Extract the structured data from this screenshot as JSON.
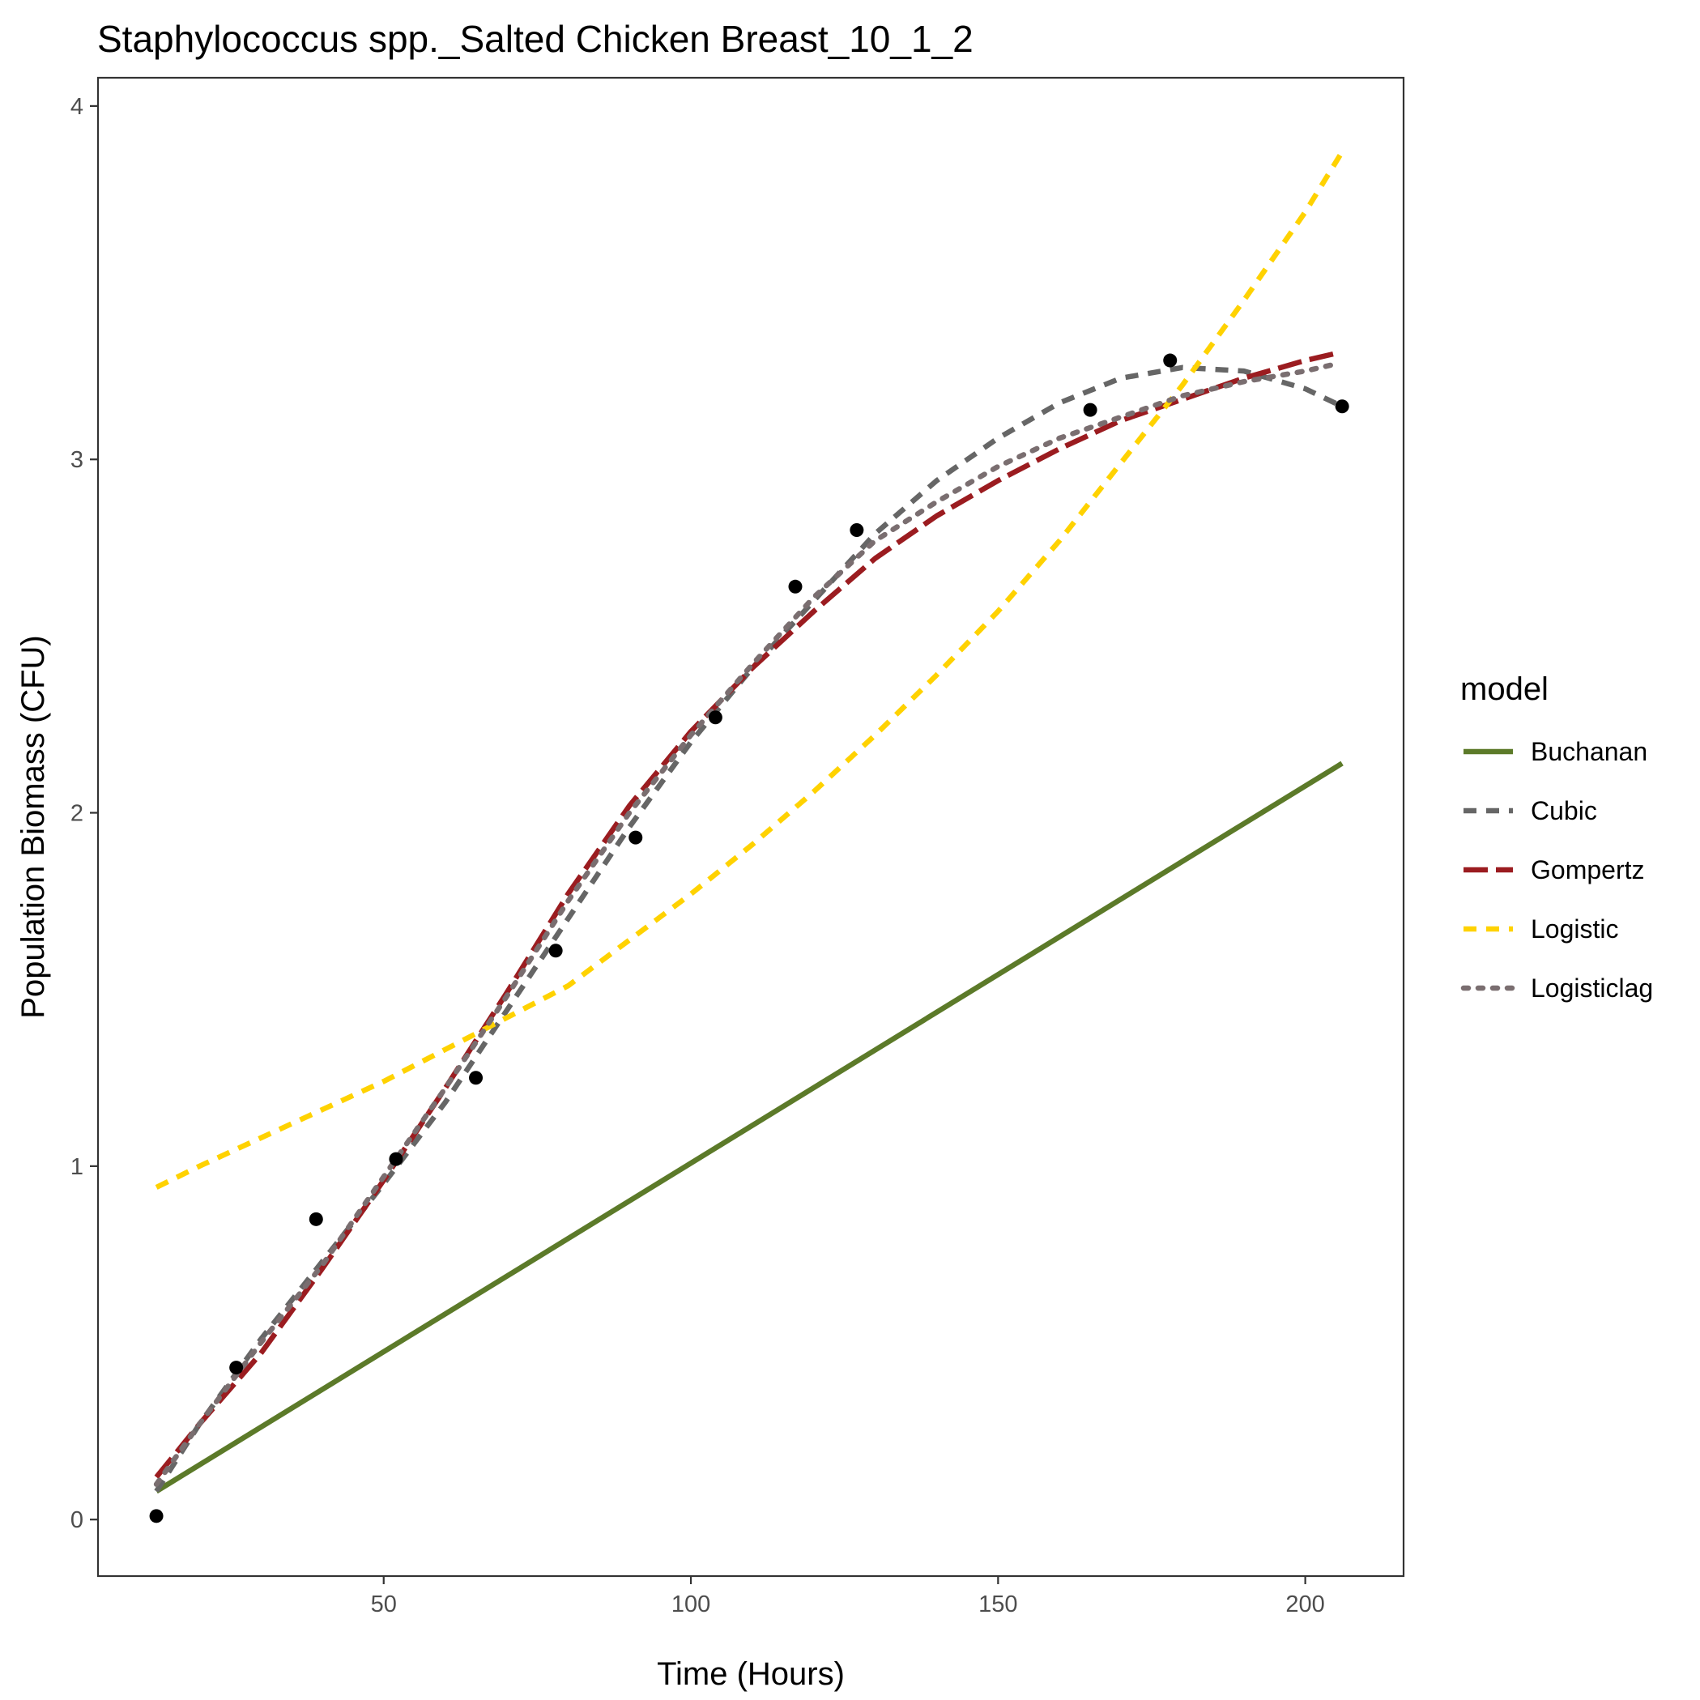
{
  "chart_data": {
    "type": "line",
    "title": "Staphylococcus spp._Salted Chicken Breast_10_1_2",
    "xlabel": "Time (Hours)",
    "ylabel": "Population Biomass (CFU)",
    "xlim": [
      3.5,
      216
    ],
    "ylim": [
      -0.16,
      4.08
    ],
    "x_ticks": [
      50,
      100,
      150,
      200
    ],
    "y_ticks": [
      0,
      1,
      2,
      3,
      4
    ],
    "grid": false,
    "legend": {
      "title": "model",
      "position": "right"
    },
    "observed": {
      "x": [
        13,
        26,
        39,
        52,
        65,
        78,
        91,
        104,
        117,
        127,
        165,
        178,
        206
      ],
      "y": [
        0.01,
        0.43,
        0.85,
        1.02,
        1.25,
        1.61,
        1.93,
        2.27,
        2.64,
        2.8,
        3.14,
        3.28,
        3.15
      ]
    },
    "series": [
      {
        "name": "Buchanan",
        "color": "#5c7a29",
        "dash": "solid",
        "x": [
          13,
          206
        ],
        "y": [
          0.08,
          2.14
        ]
      },
      {
        "name": "Cubic",
        "color": "#666666",
        "dash": "dashed",
        "x": [
          13,
          20,
          30,
          40,
          50,
          60,
          70,
          80,
          90,
          100,
          110,
          120,
          130,
          140,
          150,
          160,
          170,
          180,
          190,
          200,
          206
        ],
        "y": [
          0.08,
          0.27,
          0.51,
          0.73,
          0.95,
          1.18,
          1.44,
          1.7,
          1.96,
          2.2,
          2.41,
          2.6,
          2.79,
          2.94,
          3.06,
          3.16,
          3.23,
          3.26,
          3.25,
          3.2,
          3.15
        ]
      },
      {
        "name": "Gompertz",
        "color": "#9b1c20",
        "dash": "longdash",
        "x": [
          13,
          20,
          30,
          40,
          50,
          60,
          70,
          80,
          90,
          100,
          110,
          120,
          130,
          140,
          150,
          160,
          170,
          180,
          190,
          200,
          205
        ],
        "y": [
          0.12,
          0.27,
          0.47,
          0.71,
          0.96,
          1.22,
          1.49,
          1.77,
          2.02,
          2.23,
          2.41,
          2.57,
          2.72,
          2.84,
          2.94,
          3.03,
          3.11,
          3.17,
          3.23,
          3.28,
          3.3
        ]
      },
      {
        "name": "Logistic",
        "color": "#ffd200",
        "dash": "dashed",
        "x": [
          13,
          20,
          30,
          40,
          50,
          60,
          70,
          80,
          90,
          100,
          110,
          120,
          130,
          140,
          150,
          160,
          170,
          180,
          190,
          200,
          206
        ],
        "y": [
          0.94,
          1.0,
          1.08,
          1.16,
          1.24,
          1.33,
          1.42,
          1.51,
          1.64,
          1.77,
          1.91,
          2.06,
          2.22,
          2.39,
          2.57,
          2.77,
          2.99,
          3.21,
          3.45,
          3.7,
          3.87
        ]
      },
      {
        "name": "Logisticlag",
        "color": "#7a6e70",
        "dash": "dotted",
        "x": [
          13,
          20,
          30,
          40,
          50,
          60,
          70,
          80,
          90,
          100,
          110,
          120,
          130,
          140,
          150,
          160,
          170,
          180,
          190,
          200,
          205
        ],
        "y": [
          0.1,
          0.27,
          0.5,
          0.72,
          0.97,
          1.22,
          1.48,
          1.75,
          2.0,
          2.22,
          2.42,
          2.61,
          2.77,
          2.88,
          2.98,
          3.06,
          3.12,
          3.18,
          3.22,
          3.25,
          3.27
        ]
      }
    ]
  }
}
